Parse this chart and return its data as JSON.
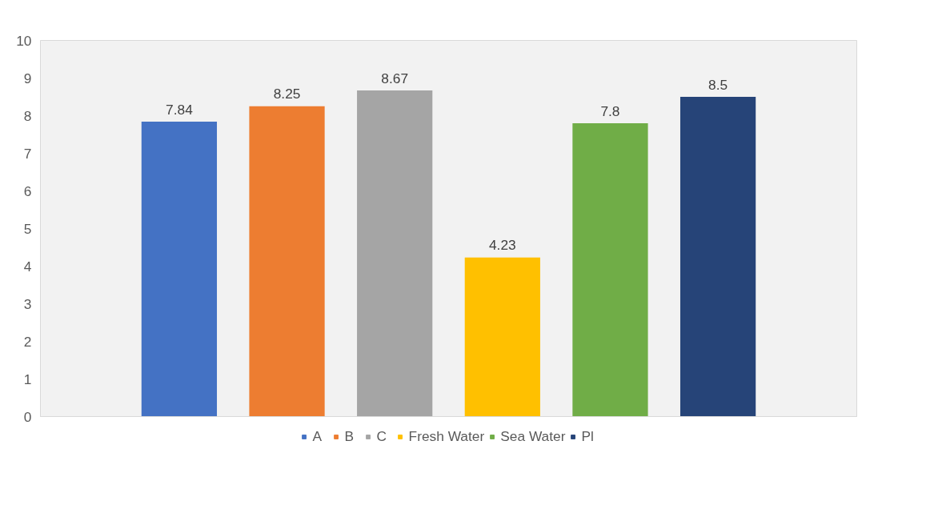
{
  "chart_data": {
    "type": "bar",
    "categories": [
      null
    ],
    "series": [
      {
        "name": "A",
        "color": "#4472c4",
        "values": [
          7.84
        ]
      },
      {
        "name": "B",
        "color": "#ed7d31",
        "values": [
          8.25
        ]
      },
      {
        "name": "C",
        "color": "#a5a5a5",
        "values": [
          8.67
        ]
      },
      {
        "name": "Fresh Water",
        "color": "#ffc000",
        "values": [
          4.23
        ]
      },
      {
        "name": "Sea Water",
        "color": "#70ad47",
        "values": [
          7.8
        ]
      },
      {
        "name": "Pl",
        "color": "#264478",
        "values": [
          8.5
        ]
      }
    ],
    "ylim": [
      0,
      10
    ],
    "yticks": [
      0,
      1,
      2,
      3,
      4,
      5,
      6,
      7,
      8,
      9,
      10
    ],
    "grid": false,
    "legend": "bottom",
    "data_labels": true
  }
}
